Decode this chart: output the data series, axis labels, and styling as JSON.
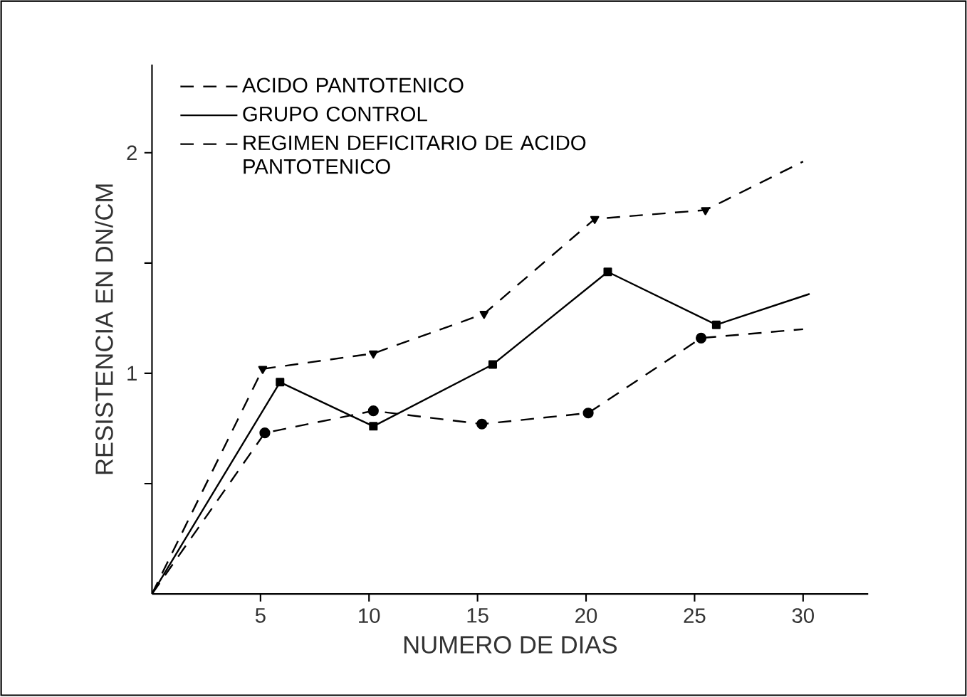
{
  "chart_data": {
    "type": "line",
    "xlabel": "NUMERO DE DIAS",
    "ylabel": "RESISTENCIA EN DN/CM",
    "xlim": [
      0,
      33
    ],
    "ylim": [
      0,
      2.4
    ],
    "xticks": [
      5,
      10,
      15,
      20,
      25,
      30
    ],
    "yticks": [
      {
        "value": 0.5,
        "label": null
      },
      1,
      {
        "value": 1.5,
        "label": null
      },
      2
    ],
    "grid": false,
    "legend": "top left",
    "series": [
      {
        "name": "ACIDO PANTOTENICO",
        "color": "#000000",
        "line_style": "dashed",
        "marker": "triangle",
        "x": [
          0,
          5.1,
          10.2,
          15.3,
          20.4,
          25.5,
          30
        ],
        "values": [
          0,
          1.02,
          1.09,
          1.27,
          1.7,
          1.74,
          1.96
        ]
      },
      {
        "name": "GRUPO CONTROL",
        "color": "#000000",
        "line_style": "solid",
        "marker": "square",
        "x": [
          0,
          5.9,
          10.2,
          15.7,
          21,
          26,
          30.3
        ],
        "values": [
          0,
          0.96,
          0.76,
          1.04,
          1.46,
          1.22,
          1.36
        ]
      },
      {
        "name": "REGIMEN DEFICITARIO DE ACIDO PANTOTENICO",
        "color": "#000000",
        "line_style": "dashed",
        "marker": "circle",
        "x": [
          0,
          5.2,
          10.2,
          15.2,
          20.1,
          25.3,
          30
        ],
        "values": [
          0,
          0.73,
          0.83,
          0.77,
          0.82,
          1.16,
          1.2
        ]
      }
    ]
  }
}
